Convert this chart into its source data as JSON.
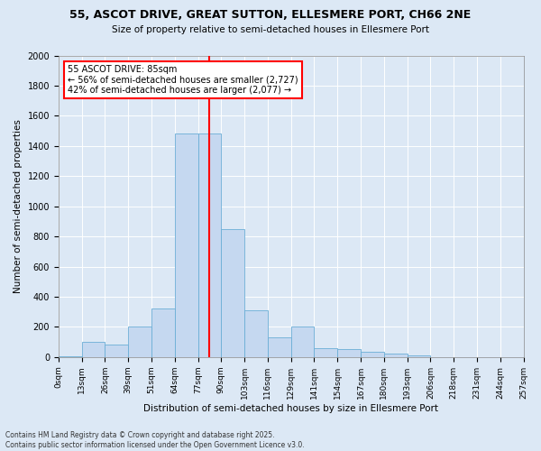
{
  "title_line1": "55, ASCOT DRIVE, GREAT SUTTON, ELLESMERE PORT, CH66 2NE",
  "title_line2": "Size of property relative to semi-detached houses in Ellesmere Port",
  "xlabel": "Distribution of semi-detached houses by size in Ellesmere Port",
  "ylabel": "Number of semi-detached properties",
  "footnote": "Contains HM Land Registry data © Crown copyright and database right 2025.\nContains public sector information licensed under the Open Government Licence v3.0.",
  "bin_edges": [
    "0sqm",
    "13sqm",
    "26sqm",
    "39sqm",
    "51sqm",
    "64sqm",
    "77sqm",
    "90sqm",
    "103sqm",
    "116sqm",
    "129sqm",
    "141sqm",
    "154sqm",
    "167sqm",
    "180sqm",
    "193sqm",
    "206sqm",
    "218sqm",
    "231sqm",
    "244sqm",
    "257sqm"
  ],
  "bar_values": [
    5,
    100,
    80,
    200,
    320,
    1480,
    1480,
    850,
    310,
    130,
    200,
    60,
    50,
    35,
    25,
    10,
    0,
    0,
    0,
    0
  ],
  "bar_color": "#c5d8f0",
  "bar_edge_color": "#6baed6",
  "vline_color": "red",
  "vline_position": 6.5,
  "annotation_title": "55 ASCOT DRIVE: 85sqm",
  "annotation_line1": "← 56% of semi-detached houses are smaller (2,727)",
  "annotation_line2": "42% of semi-detached houses are larger (2,077) →",
  "annotation_box_color": "white",
  "annotation_box_edge": "red",
  "ylim": [
    0,
    2000
  ],
  "yticks": [
    0,
    200,
    400,
    600,
    800,
    1000,
    1200,
    1400,
    1600,
    1800,
    2000
  ],
  "background_color": "#dce8f5",
  "plot_bg_color": "#dce8f5"
}
